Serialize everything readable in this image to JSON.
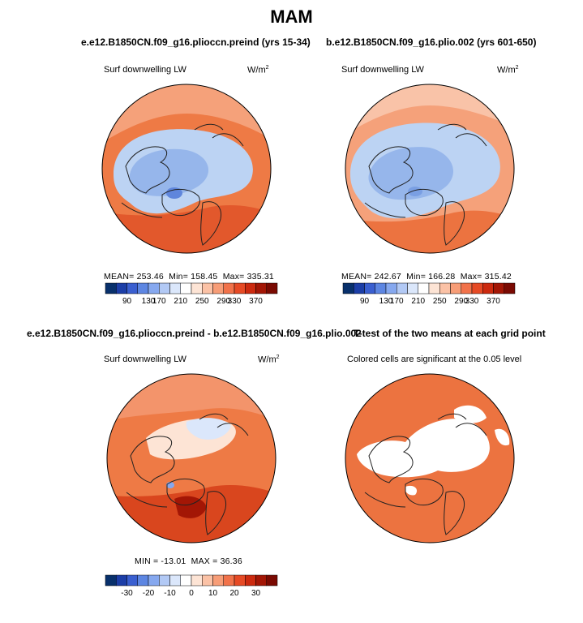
{
  "main_title": "MAM",
  "panels": [
    {
      "title": "e.e12.B1850CN.f09_g16.plioccn.preind (yrs 15-34)",
      "left_label": "Surf downwelling LW",
      "unit_base": "W/m",
      "unit_exp": "2",
      "stats": {
        "mean_label": "MEAN=",
        "mean": "253.46",
        "min_label": "Min=",
        "min": "158.45",
        "max_label": "Max=",
        "max": "335.31"
      }
    },
    {
      "title": "b.e12.B1850CN.f09_g16.plio.002 (yrs 601-650)",
      "left_label": "Surf downwelling LW",
      "unit_base": "W/m",
      "unit_exp": "2",
      "stats": {
        "mean_label": "MEAN=",
        "mean": "242.67",
        "min_label": "Min=",
        "min": "166.28",
        "max_label": "Max=",
        "max": "315.42"
      }
    },
    {
      "title": "e.e12.B1850CN.f09_g16.plioccn.preind - b.e12.B1850CN.f09_g16.plio.002",
      "left_label": "Surf downwelling LW",
      "unit_base": "W/m",
      "unit_exp": "2",
      "stats": {
        "min_label": "MIN =",
        "min": "-13.01",
        "max_label": "MAX =",
        "max": "36.36"
      }
    },
    {
      "title": "T-test of the two means at each grid point",
      "left_label": "Colored cells are significant at the 0.05 level"
    }
  ],
  "colorbar_abs": {
    "ticks": [
      "90",
      "130",
      "170",
      "210",
      "250",
      "290",
      "330",
      "370"
    ],
    "colors": [
      "#08306b",
      "#1c3ea7",
      "#3a5fd0",
      "#5d86e2",
      "#86a8ef",
      "#b2c9f5",
      "#dbe7fb",
      "#ffffff",
      "#fde4d5",
      "#fbc2a6",
      "#f79d77",
      "#f1724a",
      "#e64a25",
      "#cc2a0f",
      "#a31605",
      "#7a0a02"
    ]
  },
  "colorbar_diff": {
    "ticks": [
      "-30",
      "-20",
      "-10",
      "0",
      "10",
      "20",
      "30"
    ],
    "colors": [
      "#08306b",
      "#1c3ea7",
      "#3a5fd0",
      "#5d86e2",
      "#86a8ef",
      "#b2c9f5",
      "#dbe7fb",
      "#ffffff",
      "#fde4d5",
      "#fbc2a6",
      "#f79d77",
      "#f1724a",
      "#e64a25",
      "#cc2a0f",
      "#a31605",
      "#7a0a02"
    ]
  },
  "colors": {
    "warm": "#ee7a45",
    "warm_light": "#f5a17a",
    "warm_dark": "#d9461e",
    "cool": "#bcd3f3",
    "cool_mid": "#96b6eb",
    "cool_dark": "#5f86dc",
    "ttest": "#ec7340",
    "land": "#222222"
  }
}
